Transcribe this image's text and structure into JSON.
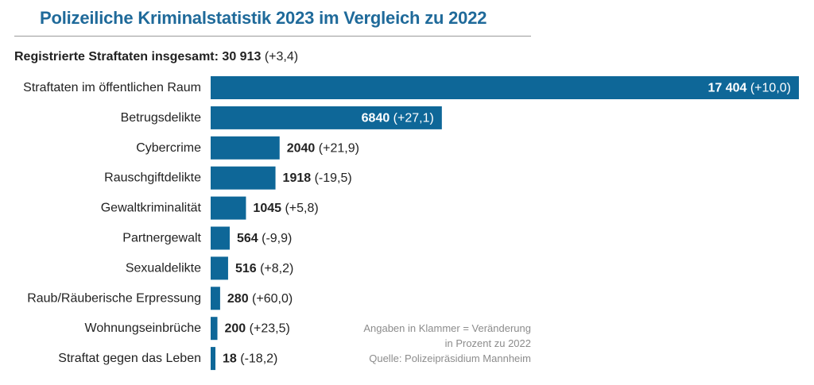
{
  "title": "Polizeiliche Kriminalstatistik 2023 im Vergleich zu 2022",
  "total": {
    "label": "Registrierte Straftaten insgesamt:",
    "value": "30 913",
    "change": "(+3,4)"
  },
  "notes": [
    "Angaben in Klammer = Veränderung",
    "in Prozent zu 2022",
    "Quelle: Polizeipräsidium Mannheim"
  ],
  "colors": {
    "bar": "#0e6798",
    "title": "#1f6a9a",
    "label_inside": "#ffffff",
    "label_outside": "#222222",
    "note": "#8c8c8c"
  },
  "chart_data": {
    "type": "bar",
    "orientation": "horizontal",
    "categories": [
      "Straftaten im öffentlichen Raum",
      "Betrugsdelikte",
      "Cybercrime",
      "Rauschgiftdelikte",
      "Gewaltkriminalität",
      "Partnergewalt",
      "Sexualdelikte",
      "Raub/Räuberische Erpressung",
      "Wohnungseinbrüche",
      "Straftat gegen das Leben"
    ],
    "values": [
      17404,
      6840,
      2040,
      1918,
      1045,
      564,
      516,
      280,
      200,
      18
    ],
    "value_labels": [
      "17 404",
      "6840",
      "2040",
      "1918",
      "1045",
      "564",
      "516",
      "280",
      "200",
      "18"
    ],
    "change_labels": [
      "(+10,0)",
      "(+27,1)",
      "(+21,9)",
      "(-19,5)",
      "(+5,8)",
      "(-9,9)",
      "(+8,2)",
      "(+60,0)",
      "(+23,5)",
      "(-18,2)"
    ],
    "label_inside": [
      true,
      true,
      false,
      false,
      false,
      false,
      false,
      false,
      false,
      false
    ],
    "grid": false,
    "legend": "none"
  }
}
